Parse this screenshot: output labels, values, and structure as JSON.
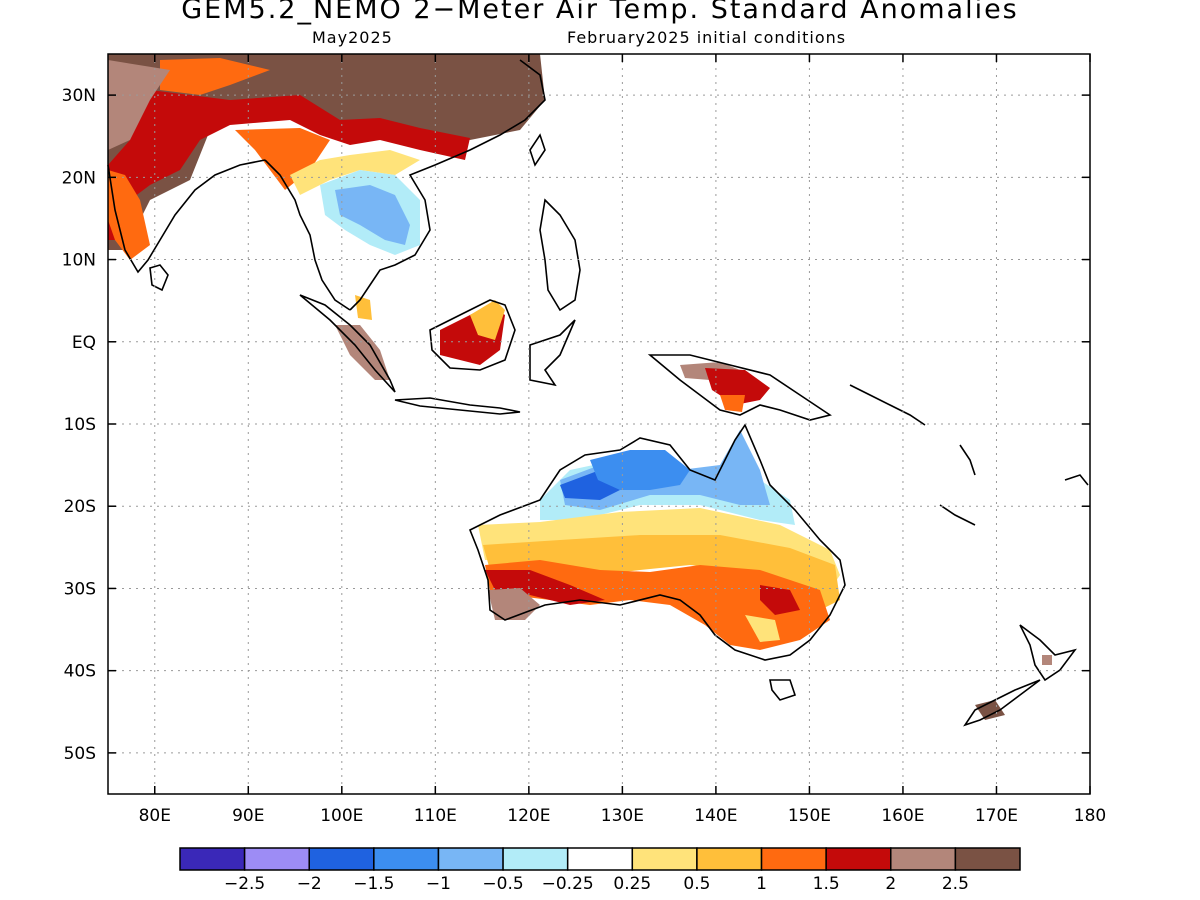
{
  "title": "GEM5.2_NEMO 2−Meter Air Temp. Standard Anomalies",
  "subtitle_left": "May2025",
  "subtitle_right": "February2025 initial conditions",
  "axes": {
    "lat_labels": [
      "30N",
      "20N",
      "10N",
      "EQ",
      "10S",
      "20S",
      "30S",
      "40S",
      "50S"
    ],
    "lon_labels": [
      "80E",
      "90E",
      "100E",
      "110E",
      "120E",
      "130E",
      "140E",
      "150E",
      "160E",
      "170E",
      "180"
    ]
  },
  "colorbar": {
    "colors": [
      "#3a28b8",
      "#9d8cf5",
      "#1f62e0",
      "#3c8ef0",
      "#78b6f5",
      "#b2ecf8",
      "#ffffff",
      "#ffe37a",
      "#ffbf3a",
      "#ff6a10",
      "#c40a0a",
      "#b3867a",
      "#7a5244"
    ],
    "labels": [
      "−2.5",
      "−2",
      "−1.5",
      "−1",
      "−0.5",
      "−0.25",
      "0.25",
      "0.5",
      "1",
      "1.5",
      "2",
      "2.5"
    ]
  }
}
